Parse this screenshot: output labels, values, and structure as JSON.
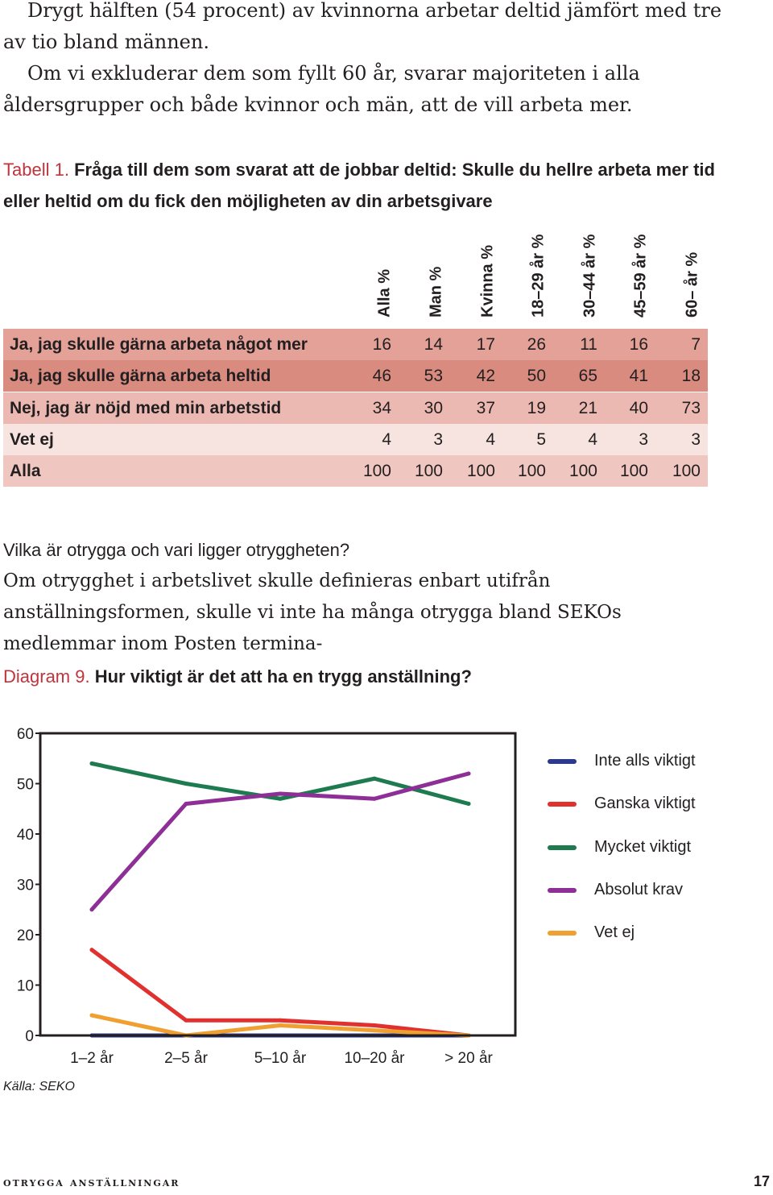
{
  "intro": {
    "p1": "Drygt hälften (54 procent) av kvinnorna arbetar deltid jämfört med tre av tio bland männen.",
    "p2": "Om vi exkluderar dem som fyllt 60 år, svarar majoriteten i alla åldersgrupper och både kvinnor och män, att de vill arbeta mer."
  },
  "table1": {
    "label": "Tabell 1.",
    "caption": "Fråga till dem som svarat att de jobbar deltid: Skulle du hellre arbeta mer tid eller heltid om du fick den möjligheten av din arbetsgivare",
    "headers": [
      "Alla %",
      "Man %",
      "Kvinna %",
      "18–29 år %",
      "30–44 år %",
      "45–59 år %",
      "60– år %"
    ],
    "rows": [
      {
        "label": "Ja, jag skulle gärna arbeta något mer",
        "values": [
          "16",
          "14",
          "17",
          "26",
          "11",
          "16",
          "7"
        ],
        "color": "#e3a198"
      },
      {
        "label": "Ja, jag skulle gärna arbeta heltid",
        "values": [
          "46",
          "53",
          "42",
          "50",
          "65",
          "41",
          "18"
        ],
        "color": "#d98b80"
      },
      {
        "label": "Nej, jag är nöjd med min arbetstid",
        "values": [
          "34",
          "30",
          "37",
          "19",
          "21",
          "40",
          "73"
        ],
        "color": "#ecb9b2"
      },
      {
        "label": "Vet ej",
        "values": [
          "4",
          "3",
          "4",
          "5",
          "4",
          "3",
          "3"
        ],
        "color": "#f7e3df"
      },
      {
        "label": "Alla",
        "values": [
          "100",
          "100",
          "100",
          "100",
          "100",
          "100",
          "100"
        ],
        "color": "#f0c6c0"
      }
    ]
  },
  "section": {
    "heading": "Vilka är otrygga och vari ligger otryggheten?",
    "text": "Om otrygghet i arbetslivet skulle definieras enbart utifrån anställningsformen, skulle vi inte ha många otrygga bland SEKOs medlemmar inom Posten termina-"
  },
  "diagram9": {
    "label": "Diagram 9.",
    "caption": "Hur viktigt är det att ha en trygg anställning?"
  },
  "chart_data": {
    "type": "line",
    "title": "Hur viktigt är det att ha en trygg anställning?",
    "categories": [
      "1–2 år",
      "2–5 år",
      "5–10 år",
      "10–20 år",
      "> 20 år"
    ],
    "ylim": [
      0,
      60
    ],
    "yticks": [
      "0",
      "10",
      "20",
      "30",
      "40",
      "50",
      "60"
    ],
    "legend_position": "right",
    "series": [
      {
        "name": "Inte alls viktigt",
        "color": "#2b3a8c",
        "values": [
          0,
          0,
          0,
          0,
          0
        ]
      },
      {
        "name": "Ganska viktigt",
        "color": "#e0312f",
        "values": [
          17,
          3,
          3,
          2,
          0
        ]
      },
      {
        "name": "Mycket viktigt",
        "color": "#1e7a4f",
        "values": [
          54,
          50,
          47,
          51,
          46
        ]
      },
      {
        "name": "Absolut krav",
        "color": "#8e2f97",
        "values": [
          25,
          46,
          48,
          47,
          52
        ]
      },
      {
        "name": "Vet ej",
        "color": "#f0a030",
        "values": [
          4,
          0,
          2,
          1,
          0
        ]
      }
    ]
  },
  "source": "Källa: SEKO",
  "footer": {
    "title": "otrygga anställningar",
    "page": "17"
  }
}
